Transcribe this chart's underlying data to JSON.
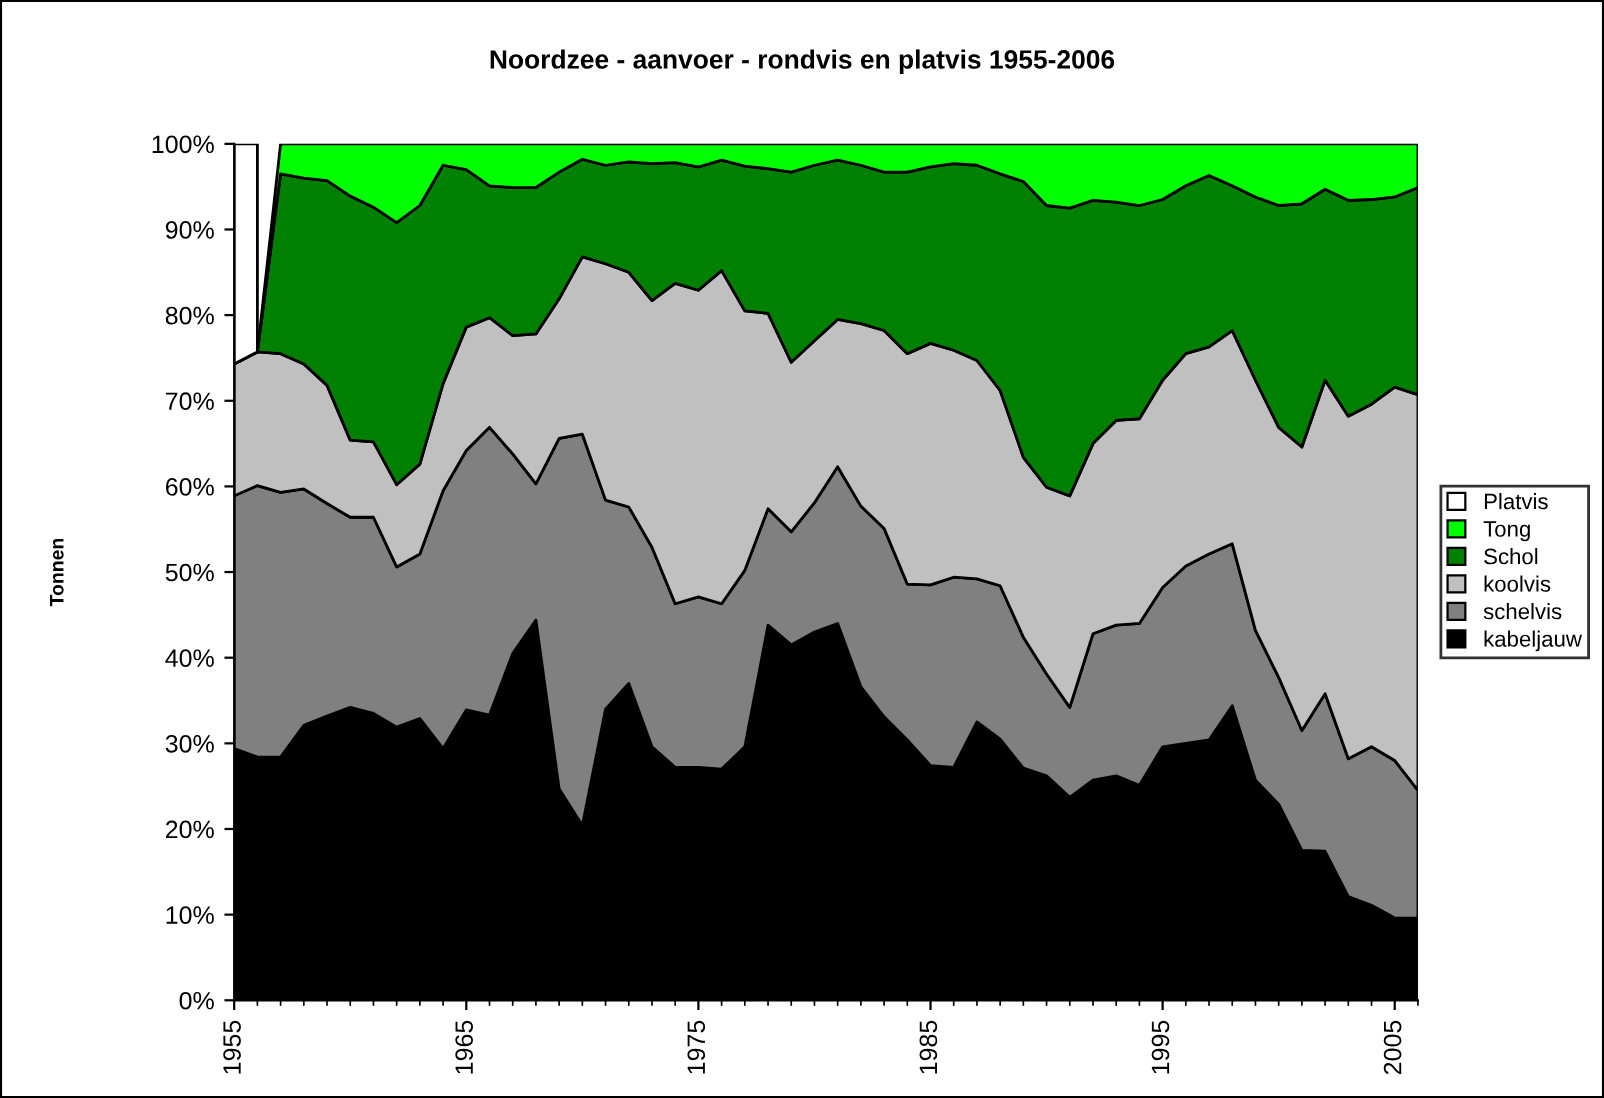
{
  "chart_data": {
    "type": "area",
    "stacked": true,
    "title": "Noordzee - aanvoer - rondvis en platvis 1955-2006",
    "ylabel": "Tonnen",
    "x": [
      1955,
      1956,
      1957,
      1958,
      1959,
      1960,
      1961,
      1962,
      1963,
      1964,
      1965,
      1966,
      1967,
      1968,
      1969,
      1970,
      1971,
      1972,
      1973,
      1974,
      1975,
      1976,
      1977,
      1978,
      1979,
      1980,
      1981,
      1982,
      1983,
      1984,
      1985,
      1986,
      1987,
      1988,
      1989,
      1990,
      1991,
      1992,
      1993,
      1994,
      1995,
      1996,
      1997,
      1998,
      1999,
      2000,
      2001,
      2002,
      2003,
      2004,
      2005,
      2006
    ],
    "series": [
      {
        "name": "kabeljauw",
        "color": "#000000",
        "values": [
          29.4,
          28.4,
          28.4,
          32.1,
          33.2,
          34.2,
          33.5,
          31.9,
          32.9,
          29.4,
          33.9,
          33.3,
          40.5,
          44.4,
          24.7,
          20.4,
          34.0,
          37.0,
          29.6,
          27.2,
          27.2,
          27.0,
          29.6,
          43.8,
          41.5,
          43.0,
          44.0,
          36.6,
          33.1,
          30.4,
          27.4,
          27.2,
          32.5,
          30.5,
          27.1,
          26.2,
          23.7,
          25.7,
          26.2,
          25.1,
          29.6,
          30.0,
          30.4,
          34.4,
          25.7,
          22.9,
          17.5,
          17.4,
          12.1,
          11.1,
          9.6,
          9.6
        ]
      },
      {
        "name": "schelvis",
        "color": "#808080",
        "values": [
          29.5,
          31.7,
          30.9,
          27.6,
          24.8,
          22.2,
          22.9,
          18.7,
          19.2,
          30.1,
          30.3,
          33.6,
          23.3,
          15.9,
          40.9,
          45.7,
          24.4,
          20.6,
          23.3,
          19.1,
          19.9,
          19.3,
          20.6,
          13.6,
          13.2,
          15.1,
          18.3,
          21.1,
          22.0,
          18.2,
          21.1,
          22.2,
          16.7,
          17.9,
          15.3,
          11.9,
          10.5,
          17.1,
          17.6,
          18.9,
          18.6,
          20.7,
          21.7,
          18.9,
          17.5,
          14.8,
          14.0,
          18.4,
          16.1,
          18.5,
          18.4,
          14.9
        ]
      },
      {
        "name": "koolvis",
        "color": "#c0c0c0",
        "values": [
          15.4,
          15.6,
          16.2,
          14.6,
          13.8,
          9.0,
          8.8,
          9.6,
          10.5,
          12.5,
          14.4,
          12.8,
          13.8,
          17.5,
          16.3,
          20.7,
          27.6,
          27.4,
          28.8,
          37.4,
          35.8,
          38.9,
          30.3,
          22.8,
          19.8,
          18.9,
          17.2,
          21.3,
          23.1,
          26.9,
          28.2,
          26.5,
          25.5,
          22.8,
          21.0,
          21.8,
          24.7,
          22.2,
          23.9,
          23.9,
          24.2,
          24.8,
          24.2,
          24.9,
          29.2,
          29.2,
          33.1,
          36.6,
          40.0,
          40.0,
          43.6,
          46.2
        ]
      },
      {
        "name": "Schol",
        "color": "#008000",
        "values": [
          0,
          0,
          21.0,
          21.7,
          23.9,
          28.5,
          27.4,
          30.6,
          30.2,
          25.5,
          18.4,
          15.4,
          17.3,
          17.1,
          14.8,
          11.4,
          11.5,
          12.9,
          16.0,
          14.1,
          14.4,
          12.9,
          16.9,
          16.9,
          22.2,
          20.5,
          18.6,
          18.5,
          18.5,
          21.2,
          20.6,
          21.8,
          22.8,
          25.3,
          32.2,
          32.9,
          33.6,
          28.4,
          25.5,
          24.9,
          21.1,
          19.6,
          20.0,
          16.9,
          21.4,
          25.9,
          28.4,
          22.3,
          25.2,
          23.9,
          22.2,
          24.2
        ]
      },
      {
        "name": "Tong",
        "color": "#00ff00",
        "values": [
          0,
          0,
          3.5,
          4.0,
          4.3,
          6.1,
          7.4,
          9.2,
          7.2,
          2.5,
          3.0,
          4.9,
          5.1,
          5.1,
          3.3,
          1.8,
          2.5,
          2.1,
          2.3,
          2.2,
          2.7,
          1.9,
          2.6,
          2.9,
          3.3,
          2.5,
          1.9,
          2.5,
          3.3,
          3.3,
          2.7,
          2.3,
          2.5,
          3.5,
          4.4,
          7.2,
          7.5,
          6.6,
          6.8,
          7.2,
          6.5,
          4.9,
          3.7,
          4.9,
          6.2,
          7.2,
          7.0,
          5.3,
          6.6,
          6.5,
          6.2,
          5.1
        ]
      },
      {
        "name": "Platvis",
        "color": "#ffffff",
        "values": [
          25.7,
          24.3,
          null,
          null,
          null,
          null,
          null,
          null,
          null,
          null,
          null,
          null,
          null,
          null,
          null,
          null,
          null,
          null,
          null,
          null,
          null,
          null,
          null,
          null,
          null,
          null,
          null,
          null,
          null,
          null,
          null,
          null,
          null,
          null,
          null,
          null,
          null,
          null,
          null,
          null,
          null,
          null,
          null,
          null,
          null,
          null,
          null,
          null,
          null,
          null,
          null,
          null
        ]
      }
    ],
    "xlim": [
      1955,
      2006
    ],
    "xticks": [
      1955,
      1965,
      1975,
      1985,
      1995,
      2005
    ],
    "ylim": [
      0,
      100
    ],
    "yticks": [
      {
        "value": 0,
        "label": "0%"
      },
      {
        "value": 10,
        "label": "10%"
      },
      {
        "value": 20,
        "label": "20%"
      },
      {
        "value": 30,
        "label": "30%"
      },
      {
        "value": 40,
        "label": "40%"
      },
      {
        "value": 50,
        "label": "50%"
      },
      {
        "value": 60,
        "label": "60%"
      },
      {
        "value": 70,
        "label": "70%"
      },
      {
        "value": 80,
        "label": "80%"
      },
      {
        "value": 90,
        "label": "90%"
      },
      {
        "value": 100,
        "label": "100%"
      }
    ],
    "grid": false,
    "legend": "right"
  }
}
